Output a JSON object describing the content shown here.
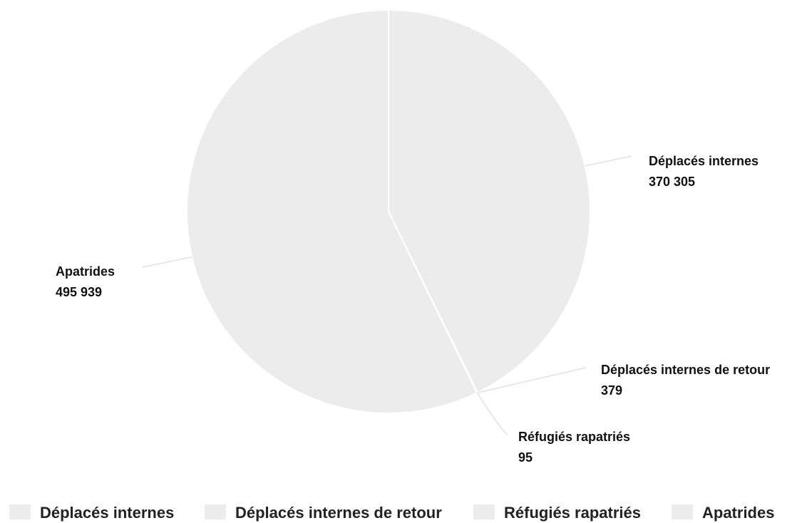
{
  "chart_data": {
    "type": "pie",
    "title": "",
    "slices": [
      {
        "label": "Déplacés internes",
        "value": 370305,
        "value_text": "370 305",
        "color": "#ececec"
      },
      {
        "label": "Déplacés internes de retour",
        "value": 379,
        "value_text": "379",
        "color": "#ececec"
      },
      {
        "label": "Réfugiés rapatriés",
        "value": 95,
        "value_text": "95",
        "color": "#ececec"
      },
      {
        "label": "Apatrides",
        "value": 495939,
        "value_text": "495 939",
        "color": "#ececec"
      }
    ],
    "legend": {
      "position": "bottom",
      "items": [
        "Déplacés internes",
        "Déplacés internes de retour",
        "Réfugiés rapatriés",
        "Apatrides"
      ]
    },
    "slice_color": "#ececec",
    "border_color": "#ffffff",
    "leader_color": "#e2e2e2"
  }
}
